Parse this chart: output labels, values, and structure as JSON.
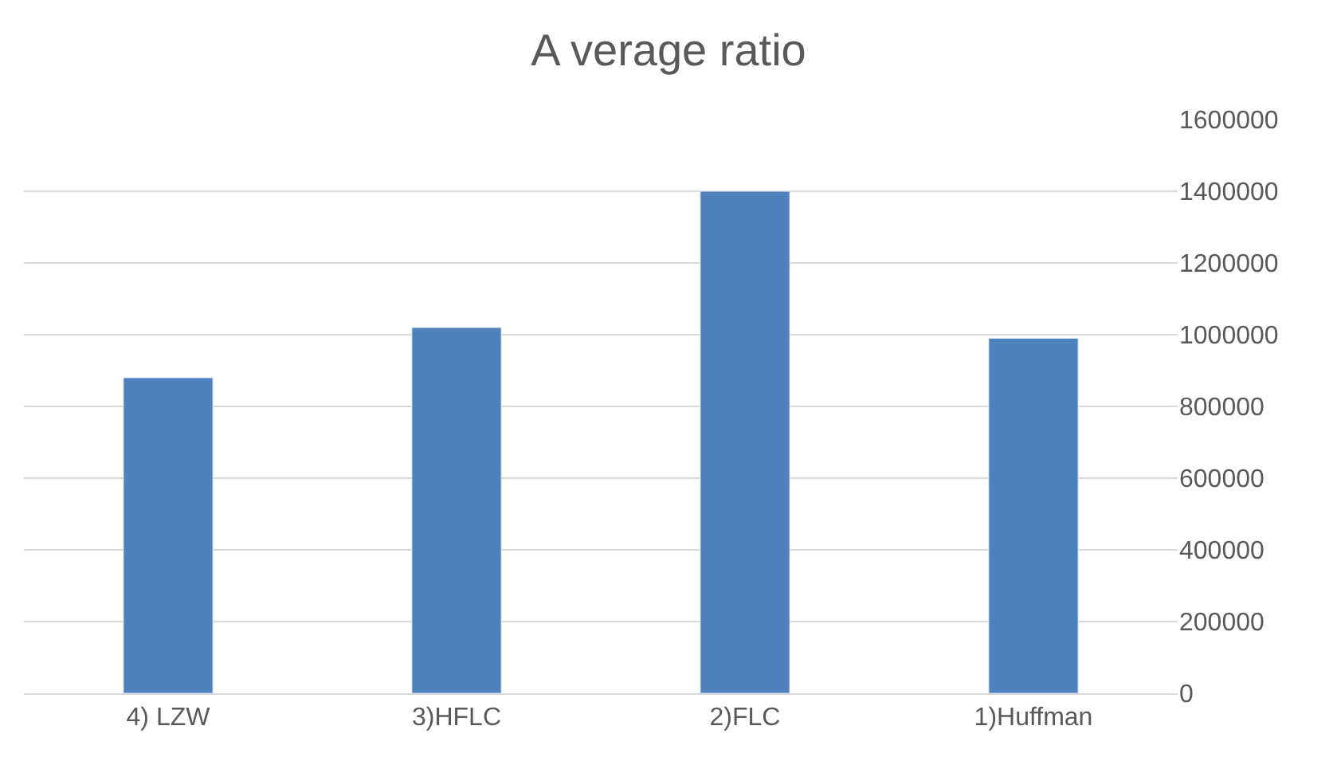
{
  "chart_data": {
    "type": "bar",
    "title": "A verage ratio",
    "categories": [
      "4) LZW",
      "3)HFLC",
      "2)FLC",
      "1)Huffman"
    ],
    "values": [
      880000,
      1020000,
      1400000,
      990000
    ],
    "color": "#4f81bd",
    "ylim": [
      0,
      1600000
    ],
    "yticks": [
      0,
      200000,
      400000,
      600000,
      800000,
      1000000,
      1200000,
      1400000,
      1600000
    ],
    "grid": "y"
  }
}
